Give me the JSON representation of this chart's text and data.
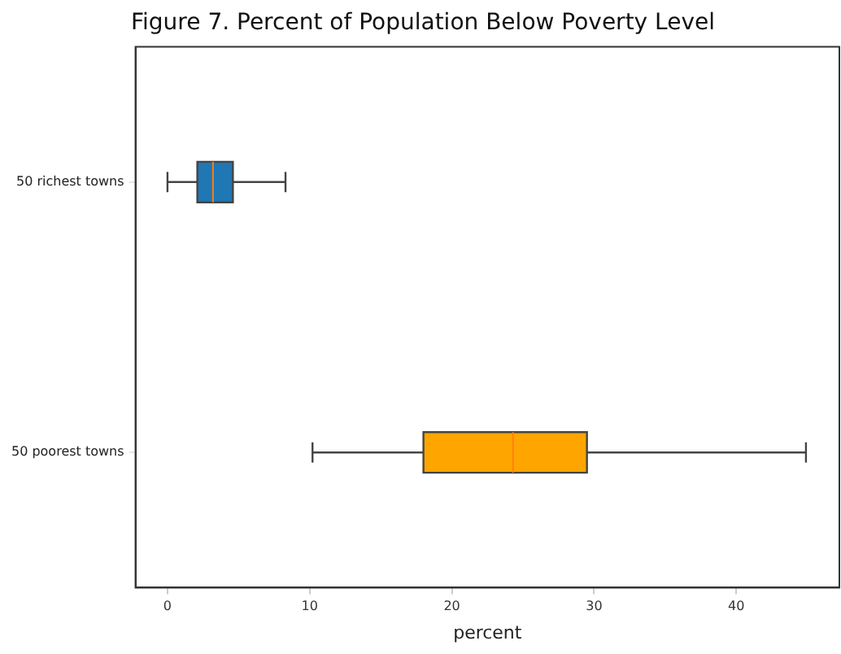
{
  "chart_data": {
    "type": "box",
    "title": "Figure 7. Percent of Population Below Poverty Level",
    "xlabel": "percent",
    "orientation": "horizontal",
    "categories": [
      "50 richest towns",
      "50 poorest towns"
    ],
    "boxes": [
      {
        "low": 0,
        "q1": 2.1,
        "median": 3.2,
        "q3": 4.6,
        "high": 8.3
      },
      {
        "low": 10.2,
        "q1": 18.0,
        "median": 24.3,
        "q3": 29.5,
        "high": 44.9
      }
    ],
    "colors": [
      "#1f77b4",
      "#ffa500"
    ],
    "xlim": [
      -2.25,
      47.25
    ],
    "xticks": [
      0,
      10,
      20,
      30,
      40
    ],
    "grid": false,
    "legend": false
  }
}
